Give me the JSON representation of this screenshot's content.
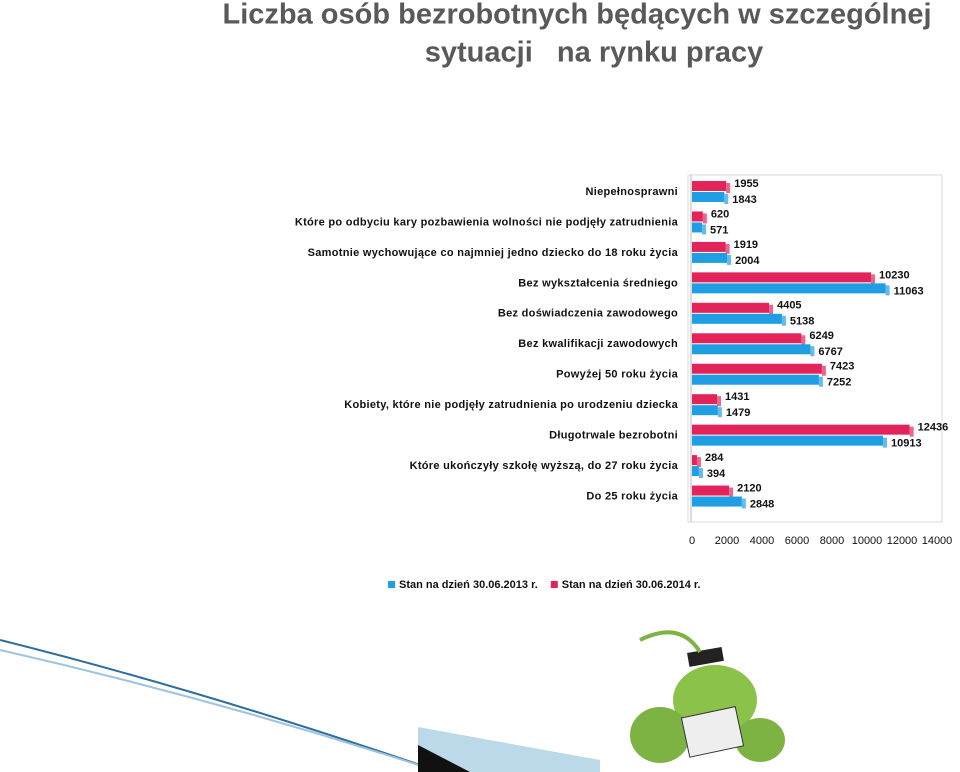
{
  "chart_data": {
    "type": "bar",
    "orientation": "horizontal",
    "title": [
      "Liczba osób bezrobotnych będących w szczególnej",
      "sytuacji   na rynku pracy"
    ],
    "categories": [
      "Niepełnosprawni",
      "Które po odbyciu kary pozbawienia wolności nie podjęły zatrudnienia",
      "Samotnie wychowujące co najmniej jedno dziecko do 18 roku życia",
      "Bez wykształcenia średniego",
      "Bez doświadczenia zawodowego",
      "Bez kwalifikacji zawodowych",
      "Powyżej 50 roku życia",
      "Kobiety, które nie podjęły zatrudnienia po urodzeniu dziecka",
      "Długotrwale bezrobotni",
      "Które ukończyły szkołę wyższą, do 27 roku życia",
      "Do 25 roku życia"
    ],
    "series": [
      {
        "name": "Stan na dzień 30.06.2013 r.",
        "color": "#1f9ee3",
        "values": [
          1843,
          571,
          2004,
          11063,
          5138,
          6767,
          7252,
          1479,
          10913,
          394,
          2848
        ]
      },
      {
        "name": "Stan na dzień 30.06.2014 r.",
        "color": "#e2245b",
        "values": [
          1955,
          620,
          1919,
          10230,
          4405,
          6249,
          7423,
          1431,
          12436,
          284,
          2120
        ]
      }
    ],
    "xlim": [
      0,
      14000
    ],
    "xticks": [
      0,
      2000,
      4000,
      6000,
      8000,
      10000,
      12000,
      14000
    ],
    "grid": false,
    "legend": "bottom"
  }
}
